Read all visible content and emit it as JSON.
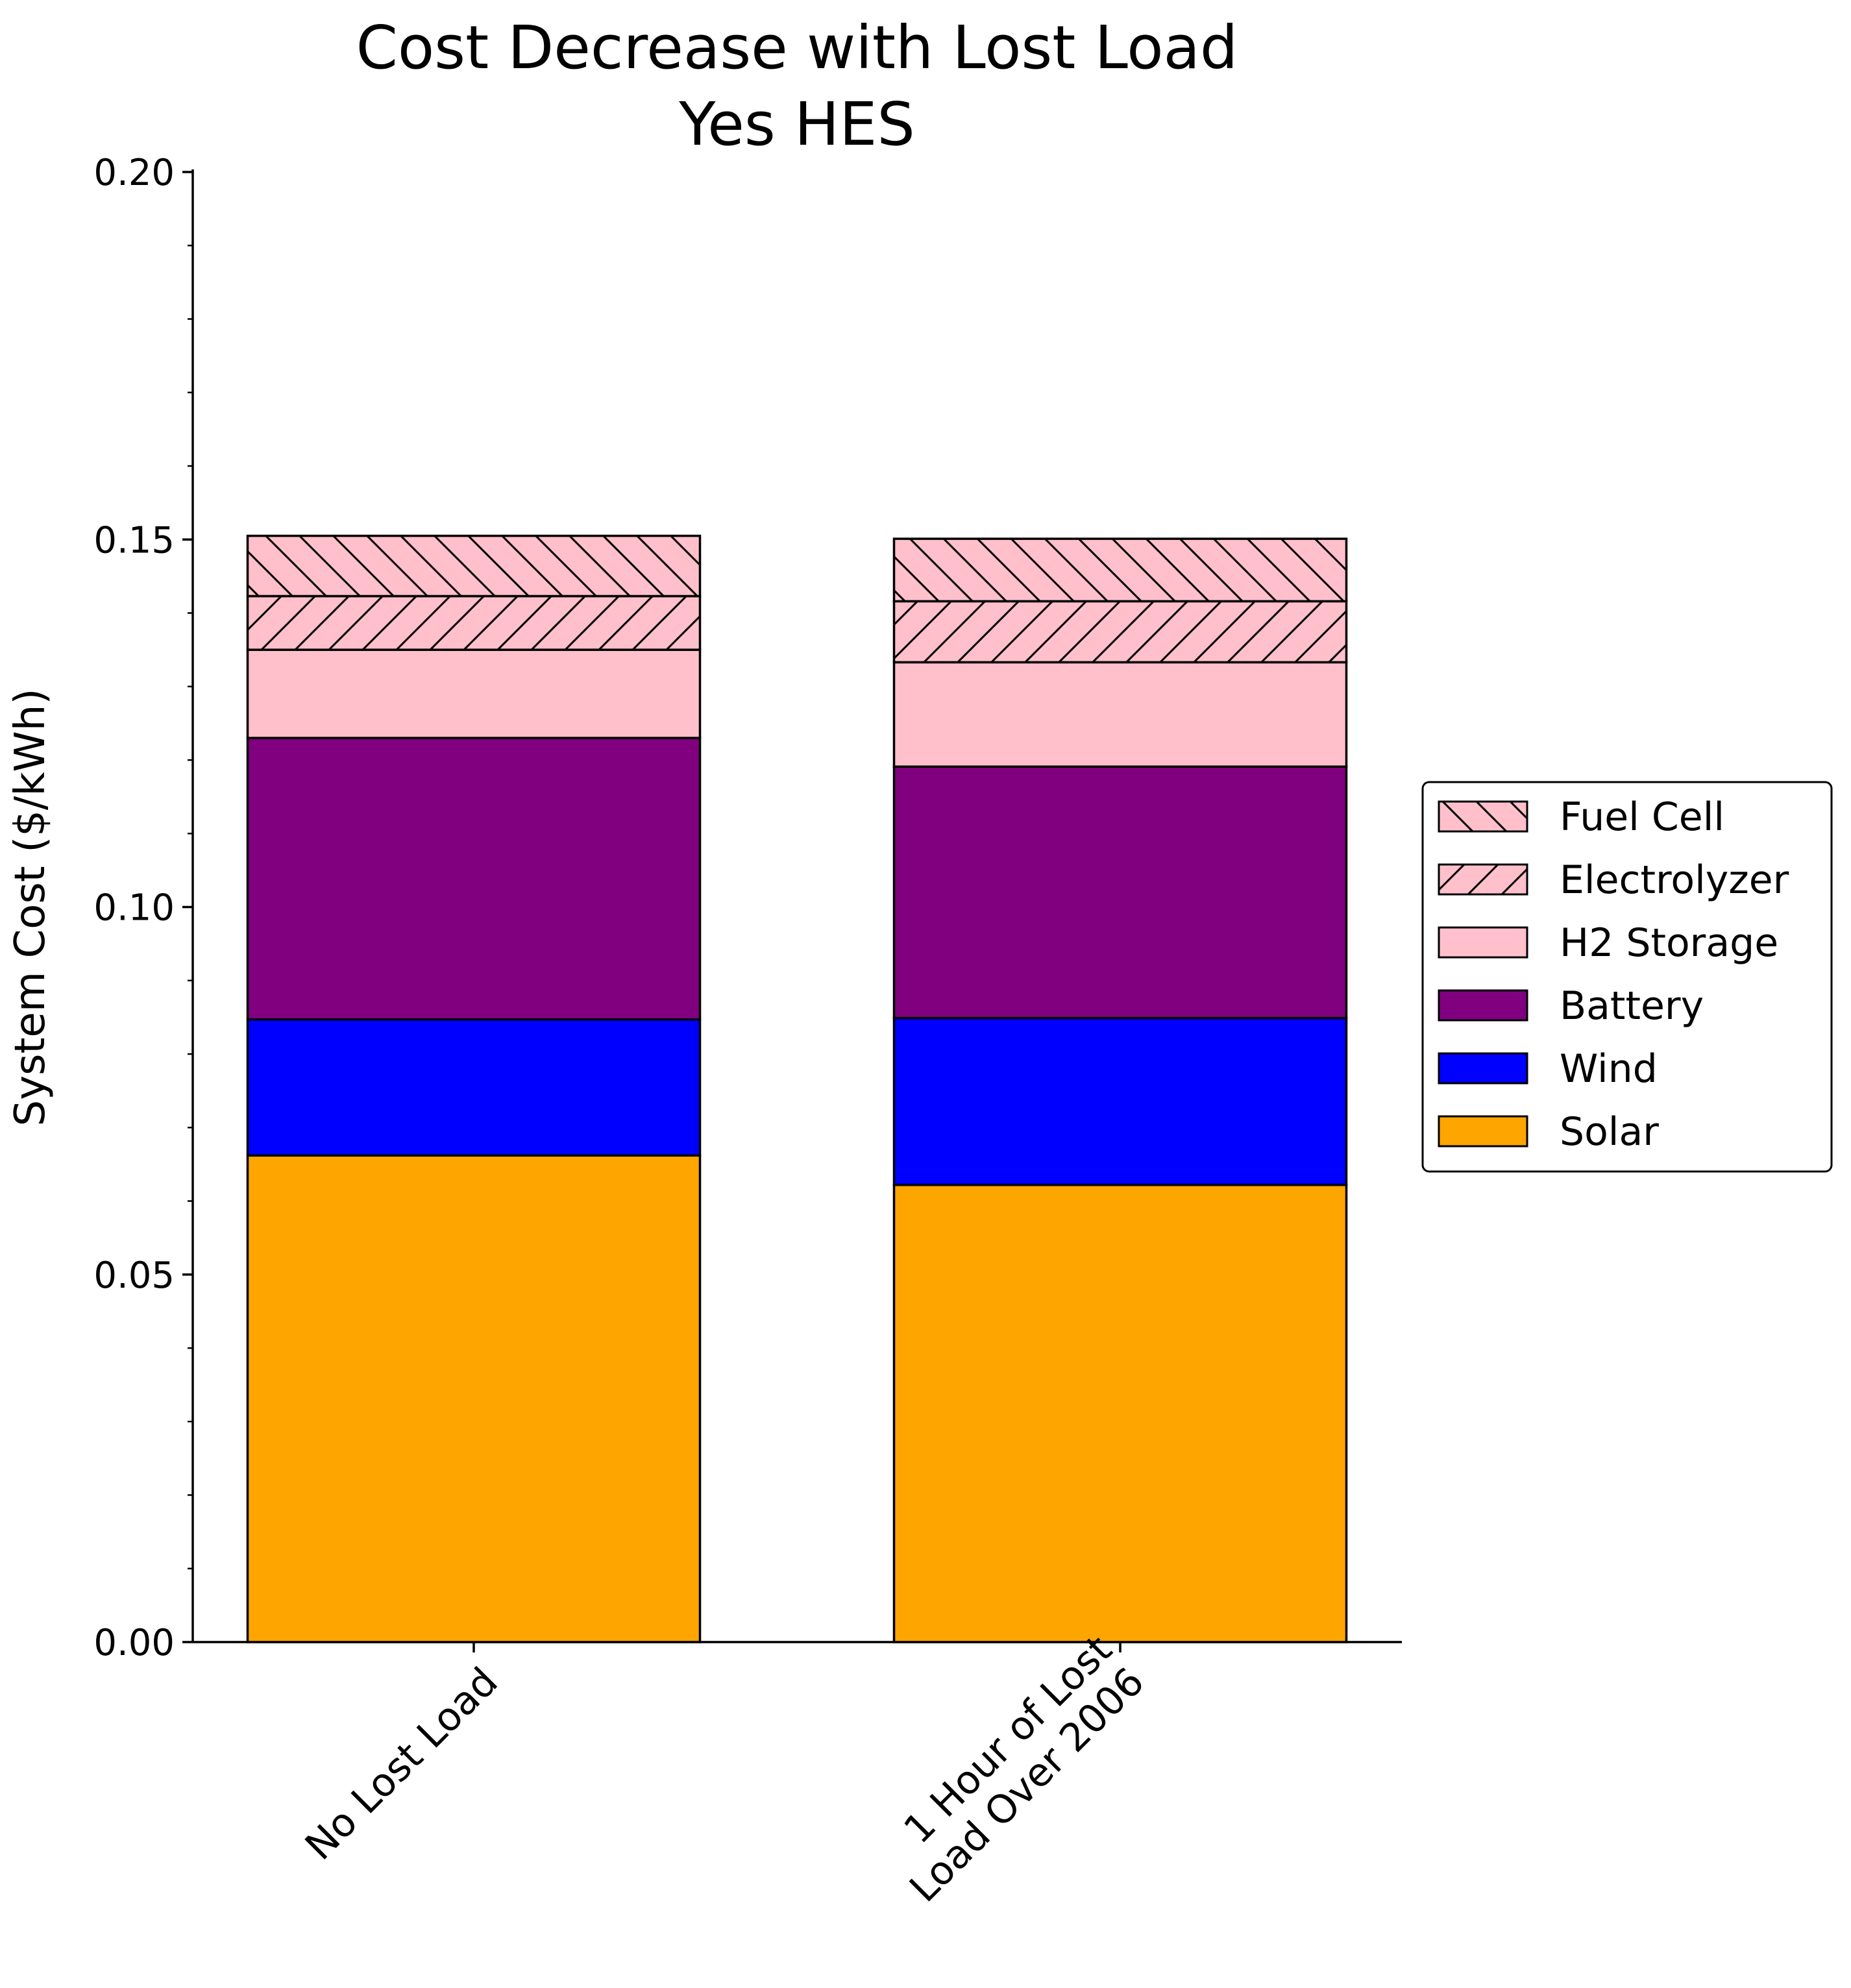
{
  "chart_data": {
    "type": "bar",
    "stacked": true,
    "title": [
      "Cost Decrease with Lost Load",
      "Yes HES"
    ],
    "xlabel": "",
    "ylabel": "System Cost ($/kWh)",
    "ylim": [
      0,
      0.2
    ],
    "yticks": [
      "0.00",
      "0.05",
      "0.10",
      "0.15",
      "0.20"
    ],
    "categories": [
      [
        "No Lost Load"
      ],
      [
        "1 Hour of Lost",
        "Load Over 2006"
      ]
    ],
    "series": [
      {
        "name": "Solar",
        "values": [
          0.0662,
          0.0622
        ],
        "color": "#FFA500",
        "hatch": "none"
      },
      {
        "name": "Wind",
        "values": [
          0.0185,
          0.0227
        ],
        "color": "#0000FF",
        "hatch": "none"
      },
      {
        "name": "Battery",
        "values": [
          0.0383,
          0.0342
        ],
        "color": "#800080",
        "hatch": "none"
      },
      {
        "name": "H2 Storage",
        "values": [
          0.012,
          0.0142
        ],
        "color": "#FFC0CB",
        "hatch": "none"
      },
      {
        "name": "Electrolyzer",
        "values": [
          0.0073,
          0.0083
        ],
        "color": "#FFC0CB",
        "hatch": "forward"
      },
      {
        "name": "Fuel Cell",
        "values": [
          0.0082,
          0.0085
        ],
        "color": "#FFC0CB",
        "hatch": "back"
      }
    ],
    "grid": false,
    "legend_position": "right"
  }
}
